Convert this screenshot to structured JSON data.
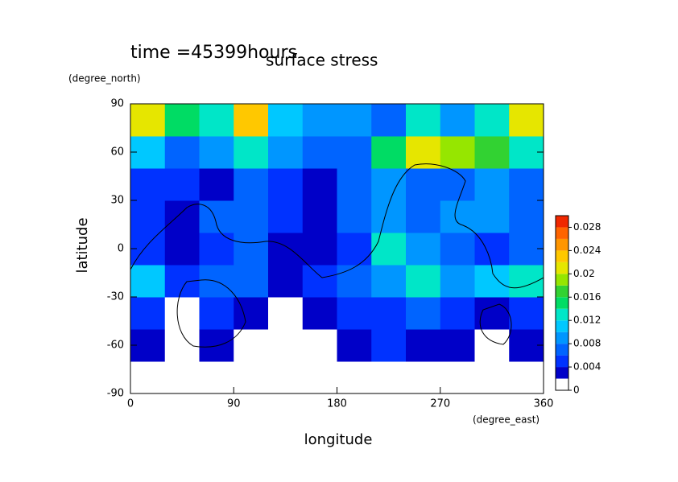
{
  "chart_data": {
    "type": "heatmap",
    "title": "surface stress",
    "subtitle": "time =45399hours",
    "x_label": "longitude",
    "x_units": "(degree_east)",
    "y_label": "latitude",
    "y_units": "(degree_north)",
    "xlim": [
      0,
      360
    ],
    "xticks": [
      0,
      90,
      180,
      270,
      360
    ],
    "ylim": [
      -90,
      90
    ],
    "yticks": [
      -90,
      -60,
      -30,
      0,
      30,
      60,
      90
    ],
    "x": [
      15,
      45,
      75,
      105,
      135,
      165,
      195,
      225,
      255,
      285,
      315,
      345
    ],
    "y": [
      -80,
      -60,
      -40,
      -20,
      0,
      20,
      40,
      60,
      80
    ],
    "z": [
      [
        0,
        0,
        0,
        0,
        0,
        0,
        0,
        0,
        0,
        0,
        0,
        0
      ],
      [
        0.002,
        0,
        0.002,
        0,
        0,
        0,
        0.002,
        0.004,
        0.002,
        0.002,
        0,
        0.002
      ],
      [
        0.004,
        0,
        0.004,
        0.002,
        0,
        0.002,
        0.004,
        0.004,
        0.006,
        0.004,
        0.002,
        0.004
      ],
      [
        0.01,
        0.004,
        0.006,
        0.006,
        0.002,
        0.004,
        0.006,
        0.008,
        0.012,
        0.008,
        0.01,
        0.012
      ],
      [
        0.004,
        0.002,
        0.004,
        0.006,
        0.002,
        0.002,
        0.004,
        0.012,
        0.008,
        0.006,
        0.004,
        0.006
      ],
      [
        0.004,
        0.002,
        0.006,
        0.006,
        0.004,
        0.002,
        0.006,
        0.008,
        0.006,
        0.008,
        0.008,
        0.006
      ],
      [
        0.004,
        0.004,
        0.002,
        0.006,
        0.004,
        0.002,
        0.006,
        0.008,
        0.006,
        0.006,
        0.008,
        0.006
      ],
      [
        0.01,
        0.006,
        0.008,
        0.012,
        0.008,
        0.006,
        0.006,
        0.014,
        0.02,
        0.018,
        0.016,
        0.012
      ],
      [
        0.02,
        0.014,
        0.012,
        0.022,
        0.01,
        0.008,
        0.008,
        0.006,
        0.012,
        0.008,
        0.012,
        0.02
      ]
    ],
    "levels": [
      0,
      0.002,
      0.004,
      0.006,
      0.008,
      0.01,
      0.012,
      0.014,
      0.016,
      0.018,
      0.02,
      0.022,
      0.024,
      0.026,
      0.028,
      0.03
    ],
    "colors": [
      "#ffffff",
      "#0000c8",
      "#0032ff",
      "#0064ff",
      "#0096ff",
      "#00c8ff",
      "#00e6c8",
      "#00dc64",
      "#32d232",
      "#96e600",
      "#e6e600",
      "#ffc800",
      "#ff9600",
      "#ff6400",
      "#f02800"
    ],
    "colorbar_ticks": [
      0,
      0.004,
      0.008,
      0.012,
      0.016,
      0.02,
      0.024,
      0.028
    ]
  }
}
